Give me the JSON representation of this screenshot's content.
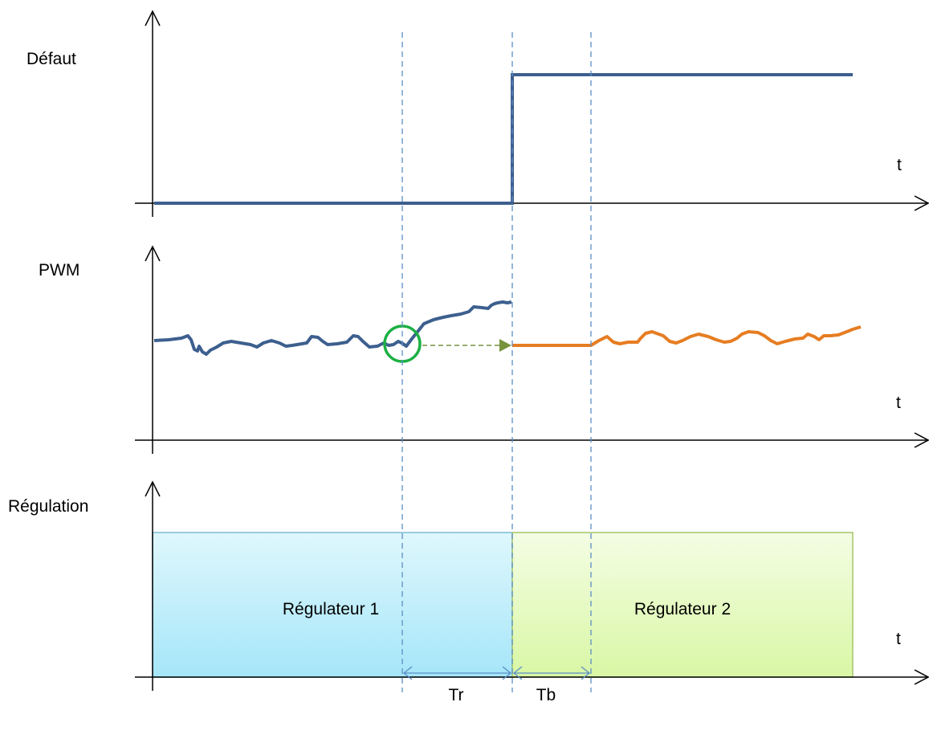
{
  "colors": {
    "signal": "#3c5f8e",
    "regulator2_signal": "#e67d22",
    "hold_arrow": "#77933c",
    "highlight_circle": "#1db044",
    "guide": "#5b8ec6",
    "regulator1_fill_top": "#dff7fd",
    "regulator1_fill_bottom": "#a5e6f9",
    "regulator1_border": "#79bcd6",
    "regulator2_fill_top": "#f4fde4",
    "regulator2_fill_bottom": "#d9f7a5",
    "regulator2_border": "#a6c56a"
  },
  "panels": {
    "defaut": {
      "label": "Défaut",
      "axis_label": "t"
    },
    "pwm": {
      "label": "PWM",
      "axis_label": "t"
    },
    "regulation": {
      "label": "Régulation",
      "axis_label": "t",
      "block1": "Régulateur 1",
      "block2": "Régulateur 2"
    }
  },
  "intervals": {
    "tr": "Tr",
    "tb": "Tb"
  }
}
